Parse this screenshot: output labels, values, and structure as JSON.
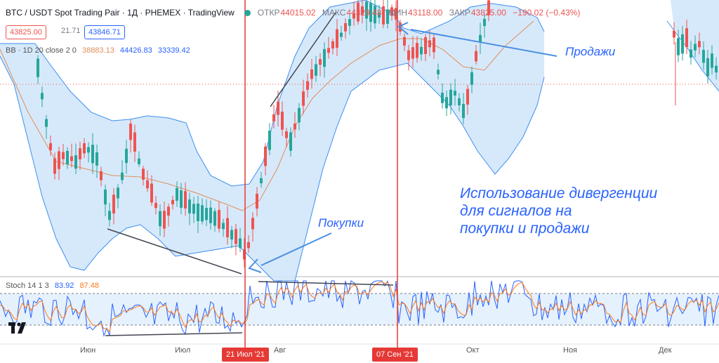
{
  "header": {
    "symbol": "BTC / USDT Spot Trading Pair · 1Д · PHEMEX · TradingView",
    "ohlc": [
      {
        "key": "ОТКР",
        "value": "44015.02"
      },
      {
        "key": "МАКС",
        "value": "44329.48"
      },
      {
        "key": "МИН",
        "value": "43118.00"
      },
      {
        "key": "ЗАКР",
        "value": "43825.00"
      },
      {
        "key": "",
        "value": "−190.02 (−0.43%)"
      }
    ],
    "status_color": "#26a69a"
  },
  "prices": {
    "bid": "43825.00",
    "spread": "21.71",
    "ask": "43846.71"
  },
  "bb_legend": {
    "label": "BB · 1D 20 close 2 0",
    "basis": "38883.13",
    "upper": "44426.83",
    "lower": "33339.42"
  },
  "stoch_legend": {
    "label": "Stoch 14 1 3",
    "k": "83.92",
    "d": "87.48"
  },
  "annotations": {
    "sell": "Продажи",
    "buy": "Покупки",
    "main": [
      "Использование дивергенции",
      "для сигналов на",
      "покупки и продажи"
    ]
  },
  "time_axis": {
    "months": [
      "Июн",
      "Июл",
      "Авг",
      "Окт",
      "Ноя",
      "Дек"
    ],
    "markers": [
      "21 Июл '21",
      "07 Сен '21"
    ]
  },
  "colors": {
    "up": "#26a69a",
    "down": "#ef5350",
    "accent": "#2962ff",
    "band_fill": "#cfe5fa",
    "band_line": "#3d8ef0",
    "basis": "#e08f5a",
    "marker": "#e53935",
    "stoch_k": "#2962ff",
    "stoch_d": "#ff7a1a"
  },
  "icons": {
    "logo": "tradingview-logo-icon"
  }
}
